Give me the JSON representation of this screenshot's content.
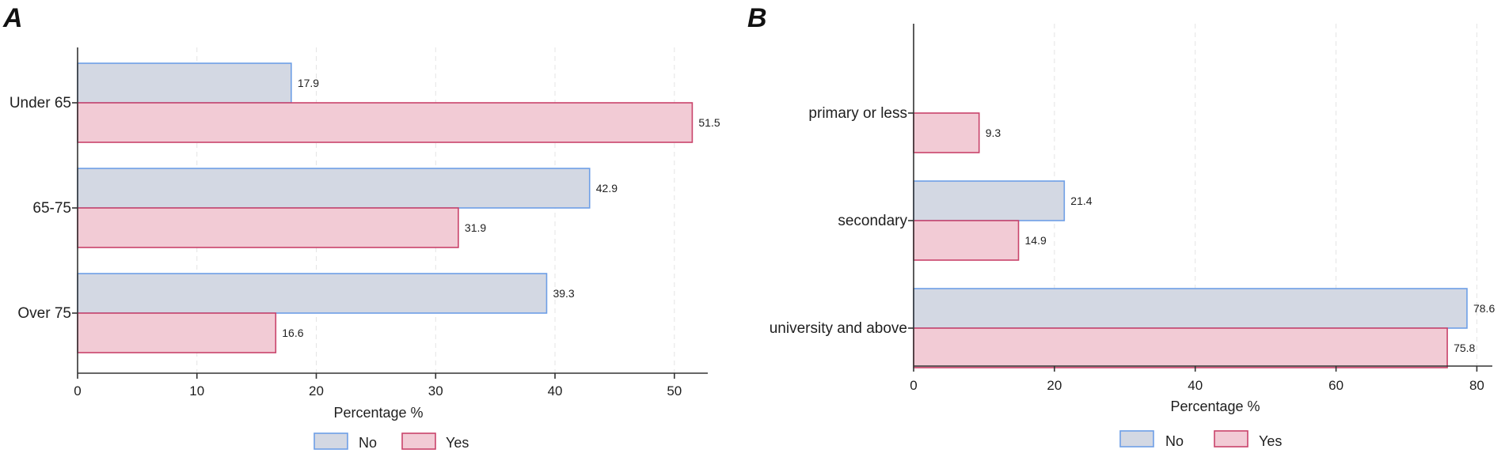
{
  "colors": {
    "no_fill": "#d3d8e3",
    "no_stroke": "#6e9fe6",
    "yes_fill": "#f2cbd5",
    "yes_stroke": "#c9446b"
  },
  "chart_data": [
    {
      "panel": "A",
      "type": "bar",
      "orientation": "horizontal",
      "categories": [
        "Under 65",
        "65-75",
        "Over 75"
      ],
      "series": [
        {
          "name": "No",
          "values": [
            17.9,
            42.9,
            39.3
          ],
          "labels": [
            "17.9",
            "42.9",
            "39.3"
          ]
        },
        {
          "name": "Yes",
          "values": [
            51.5,
            31.9,
            16.6
          ],
          "labels": [
            "51.5",
            "31.9",
            "16.6"
          ]
        }
      ],
      "xlabel": "Percentage %",
      "xlim": [
        0,
        52.8
      ],
      "xticks": [
        0,
        10,
        20,
        30,
        40,
        50
      ],
      "xtick_labels": [
        "0",
        "10",
        "20",
        "30",
        "40",
        "50"
      ],
      "legend": "bottom-center",
      "grid": "vertical-dashed"
    },
    {
      "panel": "B",
      "type": "bar",
      "orientation": "horizontal",
      "categories": [
        "primary or less",
        "secondary",
        "university and above"
      ],
      "series": [
        {
          "name": "No",
          "values": [
            null,
            21.4,
            78.6
          ],
          "labels": [
            "",
            "21.4",
            "78.6"
          ]
        },
        {
          "name": "Yes",
          "values": [
            9.3,
            14.9,
            75.8
          ],
          "labels": [
            "9.3",
            "14.9",
            "75.8"
          ]
        }
      ],
      "xlabel": "Percentage %",
      "xlim": [
        0,
        82.2
      ],
      "xticks": [
        0,
        20,
        40,
        60,
        80
      ],
      "xtick_labels": [
        "0",
        "20",
        "40",
        "60",
        "80"
      ],
      "legend": "bottom-center",
      "grid": "vertical-dashed"
    }
  ]
}
